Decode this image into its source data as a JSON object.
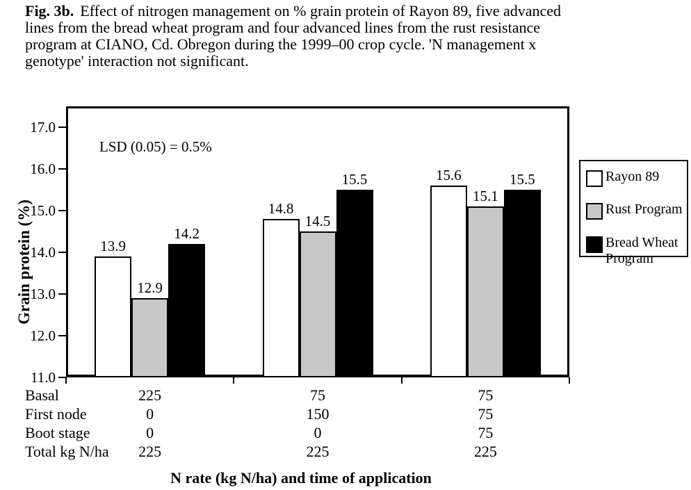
{
  "figure_caption": {
    "fig_label": "Fig. 3b.",
    "lines": [
      "Effect of nitrogen management on % grain protein of Rayon 89, five advanced",
      "lines from the bread wheat program and four advanced lines from the rust resistance",
      "program at CIANO, Cd. Obregon during the 1999–00 crop cycle.  'N management x",
      "genotype' interaction not significant."
    ]
  },
  "chart_data": {
    "type": "bar",
    "title": "",
    "ylabel": "Grain protein (%)",
    "xlabel": "N rate (kg N/ha) and time of application",
    "annotation": "LSD (0.05) = 0.5%",
    "ylim": [
      11.0,
      17.5
    ],
    "ytick_labels": [
      "11.0",
      "12.0",
      "13.0",
      "14.0",
      "15.0",
      "16.0",
      "17.0"
    ],
    "grid": false,
    "legend_position": "right",
    "bar_edge_color": "#000000",
    "series": [
      {
        "name": "Rayon 89",
        "color": "#ffffff",
        "values": [
          13.9,
          14.8,
          15.6
        ]
      },
      {
        "name": "Rust Program",
        "color": "#c8c8c8",
        "values": [
          12.9,
          14.5,
          15.1
        ]
      },
      {
        "name": "Bread Wheat Program",
        "color": "#000000",
        "values": [
          14.2,
          15.5,
          15.5
        ]
      }
    ],
    "x_table": {
      "rows": [
        {
          "label": "Basal",
          "values": [
            "225",
            "75",
            "75"
          ]
        },
        {
          "label": "First node",
          "values": [
            "0",
            "150",
            "75"
          ]
        },
        {
          "label": "Boot stage",
          "values": [
            "0",
            "0",
            "75"
          ]
        },
        {
          "label": "Total kg N/ha",
          "values": [
            "225",
            "225",
            "225"
          ]
        }
      ]
    }
  }
}
